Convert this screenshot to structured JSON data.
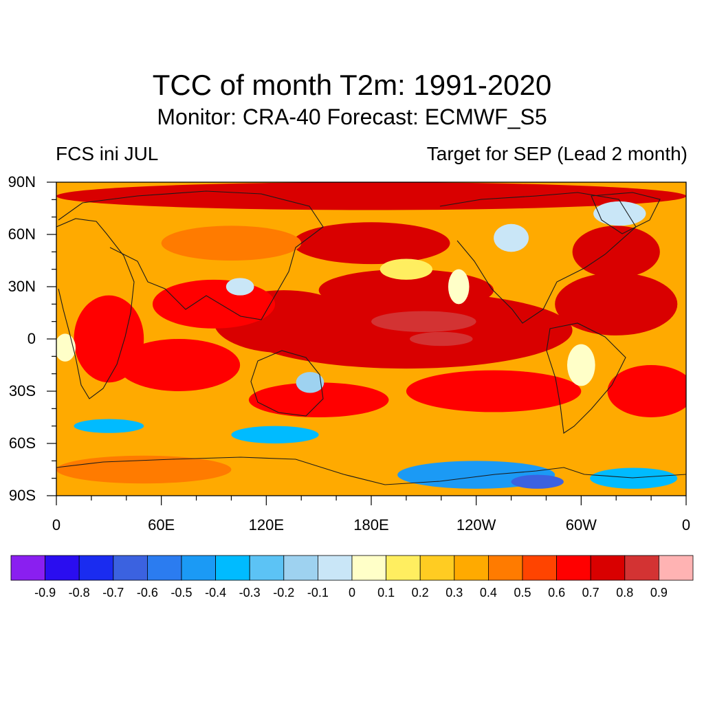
{
  "title": "TCC of month T2m: 1991-2020",
  "subtitle": "Monitor: CRA-40   Forecast: ECMWF_S5",
  "left_label": "FCS ini JUL",
  "right_label": "Target for SEP (Lead 2 month)",
  "map": {
    "lon_range": [
      0,
      360
    ],
    "lat_range": [
      -90,
      90
    ],
    "lat_ticks": [
      {
        "lat": 90,
        "label": "90N"
      },
      {
        "lat": 60,
        "label": "60N"
      },
      {
        "lat": 30,
        "label": "30N"
      },
      {
        "lat": 0,
        "label": "0"
      },
      {
        "lat": -30,
        "label": "30S"
      },
      {
        "lat": -60,
        "label": "60S"
      },
      {
        "lat": -90,
        "label": "90S"
      }
    ],
    "lon_ticks": [
      {
        "lon": 0,
        "label": "0"
      },
      {
        "lon": 60,
        "label": "60E"
      },
      {
        "lon": 120,
        "label": "120E"
      },
      {
        "lon": 180,
        "label": "180E"
      },
      {
        "lon": 240,
        "label": "120W"
      },
      {
        "lon": 300,
        "label": "60W"
      },
      {
        "lon": 360,
        "label": "0"
      }
    ],
    "base_value": 0.35,
    "regions": [
      {
        "lon": 200,
        "lat": 5,
        "rx": 95,
        "ry": 22,
        "value": 0.78
      },
      {
        "lon": 210,
        "lat": 10,
        "rx": 30,
        "ry": 6,
        "value": 0.88
      },
      {
        "lon": 220,
        "lat": 0,
        "rx": 18,
        "ry": 4,
        "value": 0.88
      },
      {
        "lon": 200,
        "lat": 28,
        "rx": 50,
        "ry": 12,
        "value": 0.75
      },
      {
        "lon": 180,
        "lat": 55,
        "rx": 45,
        "ry": 12,
        "value": 0.72
      },
      {
        "lon": 130,
        "lat": 10,
        "rx": 40,
        "ry": 18,
        "value": 0.72
      },
      {
        "lon": 90,
        "lat": 20,
        "rx": 35,
        "ry": 14,
        "value": 0.65
      },
      {
        "lon": 70,
        "lat": -15,
        "rx": 35,
        "ry": 15,
        "value": 0.68
      },
      {
        "lon": 30,
        "lat": 0,
        "rx": 20,
        "ry": 25,
        "value": 0.62
      },
      {
        "lon": 320,
        "lat": 20,
        "rx": 35,
        "ry": 18,
        "value": 0.72
      },
      {
        "lon": 320,
        "lat": 50,
        "rx": 25,
        "ry": 15,
        "value": 0.7
      },
      {
        "lon": 250,
        "lat": -30,
        "rx": 50,
        "ry": 12,
        "value": 0.65
      },
      {
        "lon": 150,
        "lat": -35,
        "rx": 40,
        "ry": 10,
        "value": 0.62
      },
      {
        "lon": 180,
        "lat": 82,
        "rx": 180,
        "ry": 8,
        "value": 0.72
      },
      {
        "lon": 340,
        "lat": -30,
        "rx": 25,
        "ry": 15,
        "value": 0.62
      },
      {
        "lon": 100,
        "lat": 55,
        "rx": 40,
        "ry": 10,
        "value": 0.45
      },
      {
        "lon": 50,
        "lat": -75,
        "rx": 50,
        "ry": 8,
        "value": 0.45
      },
      {
        "lon": 200,
        "lat": 40,
        "rx": 15,
        "ry": 6,
        "value": 0.15
      },
      {
        "lon": 240,
        "lat": -78,
        "rx": 45,
        "ry": 8,
        "value": -0.4
      },
      {
        "lon": 275,
        "lat": -82,
        "rx": 15,
        "ry": 4,
        "value": -0.65
      },
      {
        "lon": 330,
        "lat": -80,
        "rx": 25,
        "ry": 6,
        "value": -0.3
      },
      {
        "lon": 30,
        "lat": -50,
        "rx": 20,
        "ry": 4,
        "value": -0.3
      },
      {
        "lon": 125,
        "lat": -55,
        "rx": 25,
        "ry": 5,
        "value": -0.3
      },
      {
        "lon": 145,
        "lat": -25,
        "rx": 8,
        "ry": 6,
        "value": -0.15
      },
      {
        "lon": 105,
        "lat": 30,
        "rx": 8,
        "ry": 5,
        "value": -0.1
      },
      {
        "lon": 260,
        "lat": 58,
        "rx": 10,
        "ry": 8,
        "value": -0.1
      },
      {
        "lon": 322,
        "lat": 72,
        "rx": 15,
        "ry": 7,
        "value": -0.1
      },
      {
        "lon": 300,
        "lat": -15,
        "rx": 8,
        "ry": 12,
        "value": 0.0
      },
      {
        "lon": 5,
        "lat": -5,
        "rx": 6,
        "ry": 8,
        "value": 0.05
      },
      {
        "lon": 230,
        "lat": 30,
        "rx": 6,
        "ry": 10,
        "value": 0.0
      }
    ]
  },
  "colorbar": {
    "colors": [
      "#8a1ff0",
      "#2a0df0",
      "#1a2cf0",
      "#3b62e0",
      "#2b7cf0",
      "#1b9af5",
      "#00bbff",
      "#5cc3f5",
      "#9ed2f0",
      "#c9e6f7",
      "#ffffc8",
      "#ffee60",
      "#ffcc22",
      "#ffaa00",
      "#ff7b00",
      "#ff4400",
      "#ff0000",
      "#d90000",
      "#d33333",
      "#ffb3b3"
    ],
    "labels": [
      "-0.9",
      "-0.8",
      "-0.7",
      "-0.6",
      "-0.5",
      "-0.4",
      "-0.3",
      "-0.2",
      "-0.1",
      "0",
      "0.1",
      "0.2",
      "0.3",
      "0.4",
      "0.5",
      "0.6",
      "0.7",
      "0.8",
      "0.9"
    ]
  }
}
